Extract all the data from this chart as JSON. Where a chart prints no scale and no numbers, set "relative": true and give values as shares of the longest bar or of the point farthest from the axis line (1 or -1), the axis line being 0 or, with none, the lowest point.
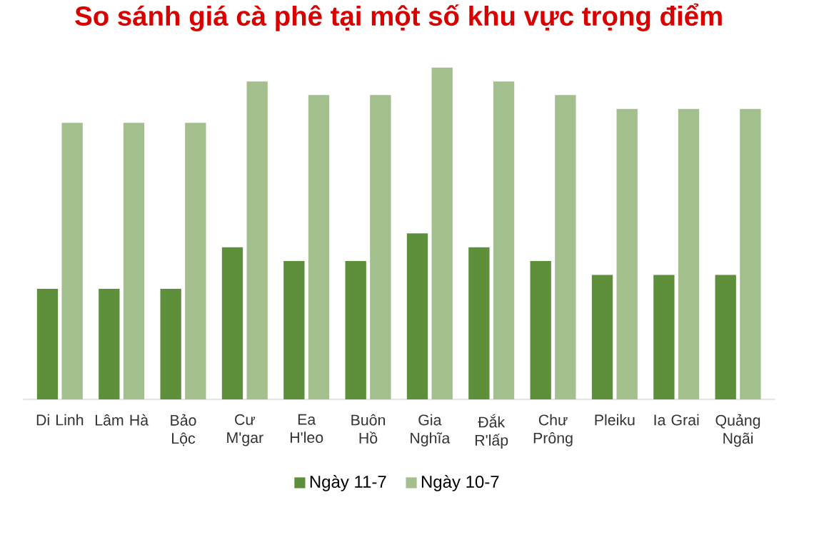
{
  "chart_data": {
    "type": "bar",
    "title": "So sánh giá cà phê tại một số khu vực trọng điểm",
    "categories": [
      "Di Linh",
      "Lâm Hà",
      "Bảo Lộc",
      "Cư M'gar",
      "Ea H'leo",
      "Buôn Hồ",
      "Gia Nghĩa",
      "Đắk R'lấp",
      "Chư Prông",
      "Pleiku",
      "Ia Grai",
      "Quảng Ngãi"
    ],
    "relative": true,
    "series": [
      {
        "name": "Ngày 11-7",
        "color": "#5e8f3a",
        "values": [
          0.333,
          0.333,
          0.333,
          0.458,
          0.417,
          0.417,
          0.5,
          0.458,
          0.417,
          0.375,
          0.375,
          0.375
        ]
      },
      {
        "name": "Ngày 10-7",
        "color": "#a3bf8e",
        "values": [
          0.833,
          0.833,
          0.833,
          0.958,
          0.917,
          0.917,
          1,
          0.958,
          0.917,
          0.875,
          0.875,
          0.875
        ]
      }
    ],
    "legend": "bottom"
  }
}
